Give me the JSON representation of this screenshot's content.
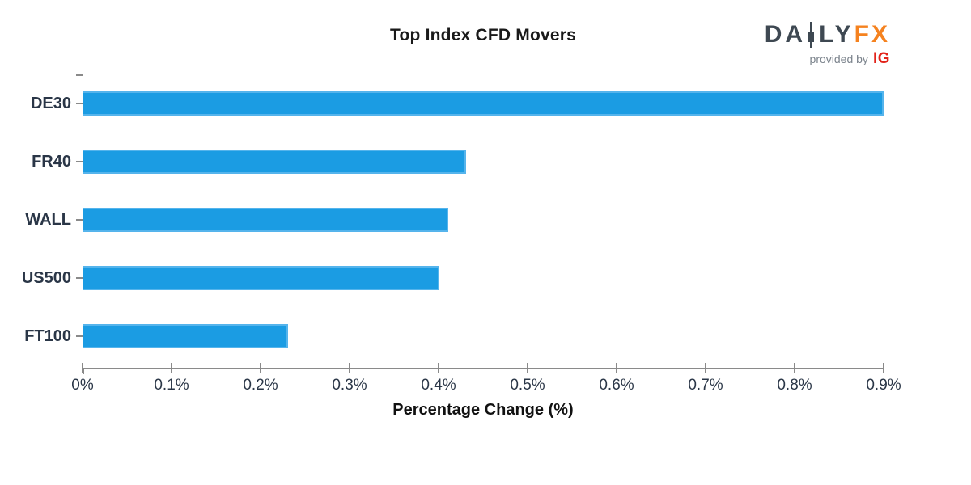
{
  "title": "Top Index CFD Movers",
  "logo": {
    "part1": "DA",
    "part2": "LY",
    "fx": "FX",
    "provided_by": "provided by",
    "ig": "IG",
    "daily_color": "#3e4852",
    "fx_color": "#f5821f",
    "ig_color": "#e2231a"
  },
  "chart_data": {
    "type": "bar",
    "orientation": "horizontal",
    "title": "Top Index CFD Movers",
    "categories": [
      "DE30",
      "FR40",
      "WALL",
      "US500",
      "FT100"
    ],
    "values": [
      0.9,
      0.43,
      0.41,
      0.4,
      0.23
    ],
    "xlabel": "Percentage Change (%)",
    "ylabel": "",
    "xlim": [
      0,
      0.9
    ],
    "xtick_labels": [
      "0%",
      "0.1%",
      "0.2%",
      "0.3%",
      "0.4%",
      "0.5%",
      "0.6%",
      "0.7%",
      "0.8%",
      "0.9%"
    ],
    "grid": false,
    "legend": false,
    "bar_color": "#1b9ce3",
    "bar_edge_color": "#55b4ec",
    "axis_color": "#8a8a8a",
    "tick_label_color": "#2a3647"
  }
}
